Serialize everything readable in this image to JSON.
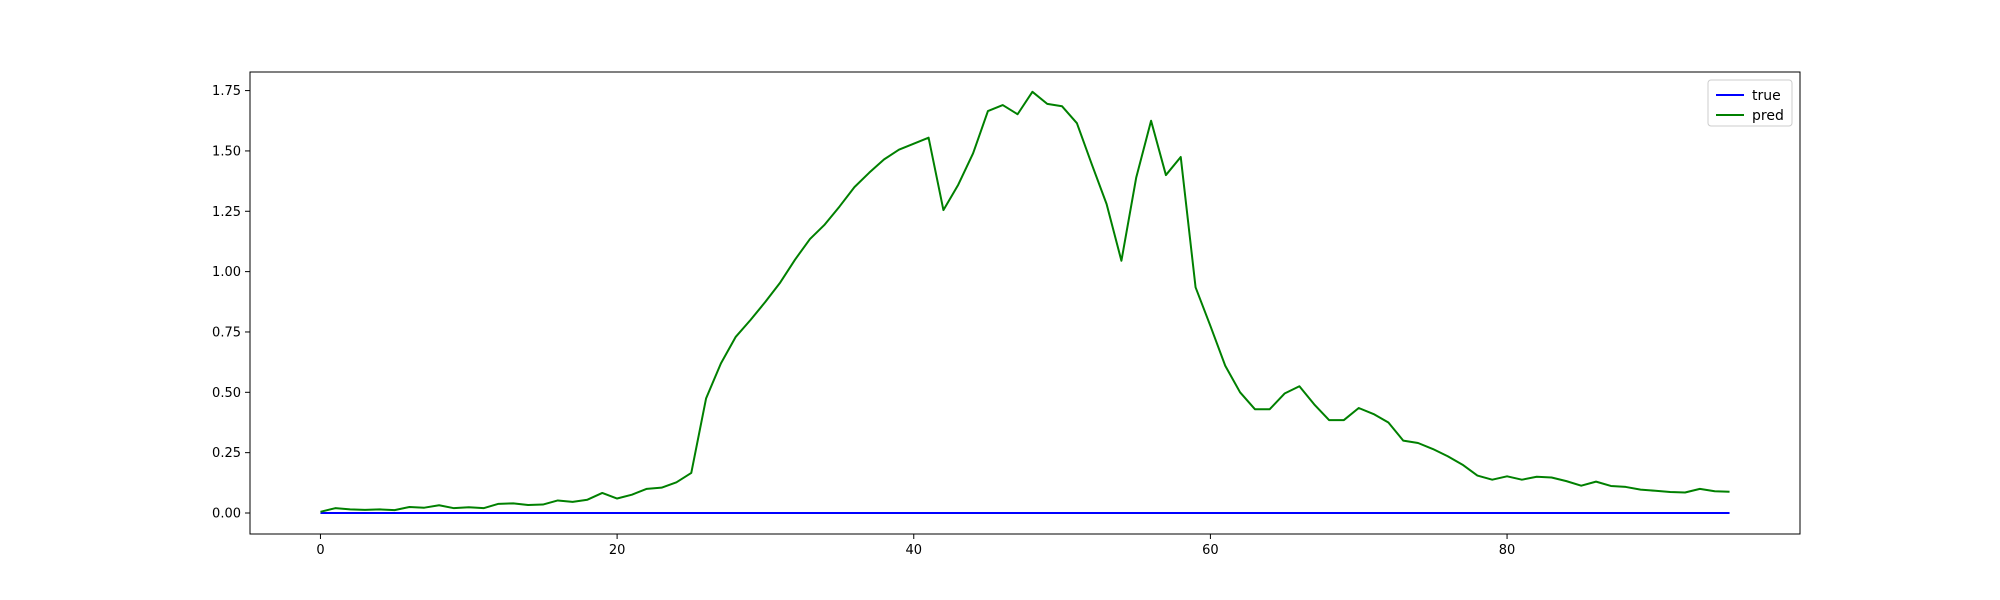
{
  "chart_data": {
    "type": "line",
    "title": "",
    "xlabel": "",
    "ylabel": "",
    "xlim": [
      -4.75,
      99.75
    ],
    "ylim": [
      -0.087,
      1.827
    ],
    "xticks": [
      "0",
      "20",
      "40",
      "60",
      "80"
    ],
    "xtick_values": [
      0,
      20,
      40,
      60,
      80
    ],
    "yticks": [
      "0.00",
      "0.25",
      "0.50",
      "0.75",
      "1.00",
      "1.25",
      "1.50",
      "1.75"
    ],
    "ytick_values": [
      0,
      0.25,
      0.5,
      0.75,
      1.0,
      1.25,
      1.5,
      1.75
    ],
    "grid": false,
    "legend_position": "top-right",
    "series": [
      {
        "name": "true",
        "color": "#0000ff",
        "x": [
          0,
          95
        ],
        "values": [
          0,
          0
        ]
      },
      {
        "name": "pred",
        "color": "#008000",
        "x": [
          0,
          1,
          2,
          3,
          4,
          5,
          6,
          7,
          8,
          9,
          10,
          11,
          12,
          13,
          14,
          15,
          16,
          17,
          18,
          19,
          20,
          21,
          22,
          23,
          24,
          25,
          26,
          27,
          28,
          29,
          30,
          31,
          32,
          33,
          34,
          35,
          36,
          37,
          38,
          39,
          40,
          41,
          42,
          43,
          44,
          45,
          46,
          47,
          48,
          49,
          50,
          51,
          52,
          53,
          54,
          55,
          56,
          57,
          58,
          59,
          60,
          61,
          62,
          63,
          64,
          65,
          66,
          67,
          68,
          69,
          70,
          71,
          72,
          73,
          74,
          75,
          76,
          77,
          78,
          79,
          80,
          81,
          82,
          83,
          84,
          85,
          86,
          87,
          88,
          89,
          90,
          91,
          92,
          93,
          94,
          95
        ],
        "values": [
          0.005,
          0.02,
          0.015,
          0.013,
          0.015,
          0.012,
          0.025,
          0.022,
          0.032,
          0.02,
          0.024,
          0.02,
          0.038,
          0.04,
          0.033,
          0.035,
          0.052,
          0.046,
          0.055,
          0.083,
          0.06,
          0.076,
          0.1,
          0.105,
          0.127,
          0.166,
          0.475,
          0.62,
          0.73,
          0.8,
          0.875,
          0.955,
          1.05,
          1.135,
          1.195,
          1.27,
          1.35,
          1.41,
          1.465,
          1.505,
          1.53,
          1.555,
          1.255,
          1.36,
          1.49,
          1.665,
          1.69,
          1.652,
          1.745,
          1.695,
          1.685,
          1.615,
          1.445,
          1.28,
          1.045,
          1.39,
          1.625,
          1.4,
          1.475,
          0.935,
          0.775,
          0.61,
          0.5,
          0.43,
          0.43,
          0.495,
          0.525,
          0.45,
          0.385,
          0.385,
          0.435,
          0.41,
          0.375,
          0.3,
          0.29,
          0.265,
          0.235,
          0.2,
          0.155,
          0.138,
          0.152,
          0.138,
          0.15,
          0.147,
          0.132,
          0.113,
          0.13,
          0.112,
          0.108,
          0.097,
          0.092,
          0.087,
          0.085,
          0.1,
          0.09,
          0.088
        ]
      }
    ]
  }
}
